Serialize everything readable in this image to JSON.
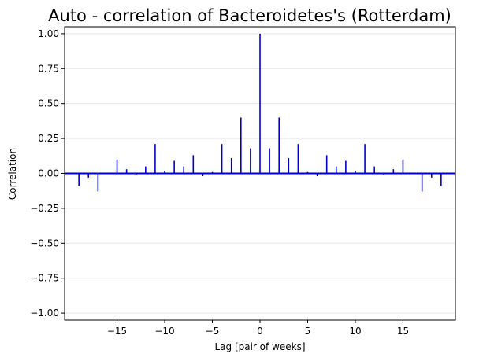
{
  "chart_data": {
    "type": "bar",
    "title": "Auto - correlation of Bacteroidetes's (Rotterdam)",
    "xlabel": "Lag [pair of weeks]",
    "ylabel": "Correlation",
    "xlim": [
      -20.5,
      20.5
    ],
    "ylim": [
      -1.05,
      1.05
    ],
    "grid": "horizontal",
    "x_ticks": [
      -15,
      -10,
      -5,
      0,
      5,
      10,
      15
    ],
    "x_tick_labels": [
      "−15",
      "−10",
      "−5",
      "0",
      "5",
      "10",
      "15"
    ],
    "y_ticks": [
      -1.0,
      -0.75,
      -0.5,
      -0.25,
      0.0,
      0.25,
      0.5,
      0.75,
      1.0
    ],
    "y_tick_labels": [
      "−1.00",
      "−0.75",
      "−0.50",
      "−0.25",
      "0.00",
      "0.25",
      "0.50",
      "0.75",
      "1.00"
    ],
    "colors": {
      "bars": "#0000cc",
      "zero_line": "#0000cc",
      "grid": "#e6e6e6"
    },
    "series": [
      {
        "lags": [
          -19,
          -18,
          -17,
          -15,
          -14,
          -13,
          -12,
          -11,
          -10,
          -9,
          -8,
          -7,
          -6,
          -5,
          -4,
          -3,
          -2,
          -1,
          0,
          1,
          2,
          3,
          4,
          5,
          6,
          7,
          8,
          9,
          10,
          11,
          12,
          13,
          14,
          15,
          17,
          18,
          19
        ],
        "values": [
          -0.09,
          -0.03,
          -0.13,
          0.1,
          0.03,
          -0.01,
          0.05,
          0.21,
          0.02,
          0.09,
          0.05,
          0.13,
          -0.02,
          0.01,
          0.21,
          0.11,
          0.4,
          0.18,
          1.0,
          0.18,
          0.4,
          0.11,
          0.21,
          0.01,
          -0.02,
          0.13,
          0.05,
          0.09,
          0.02,
          0.21,
          0.05,
          -0.01,
          0.03,
          0.1,
          -0.13,
          -0.03,
          -0.09
        ]
      }
    ]
  }
}
